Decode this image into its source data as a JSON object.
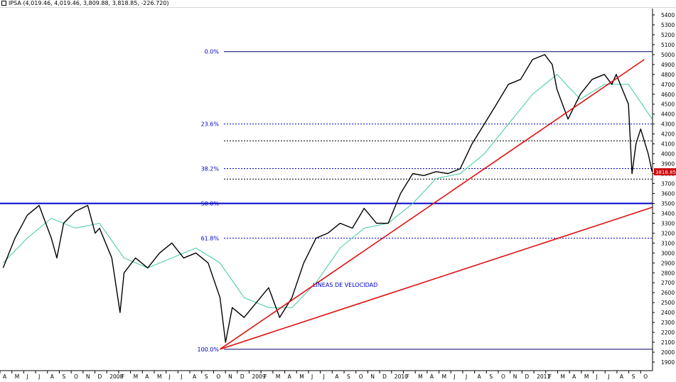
{
  "header": {
    "symbol": "IPSA",
    "ohlc": "(4,019.46, 4,019.46, 3,809.88, 3,818.85, -226.720)"
  },
  "chart_data": {
    "type": "line",
    "title": "IPSA",
    "subtitle": "(4,019.46, 4,019.46, 3,809.88, 3,818.85, -226.720)",
    "ylim": [
      1800,
      5500
    ],
    "yticks": [
      1900,
      2000,
      2100,
      2200,
      2300,
      2400,
      2500,
      2600,
      2700,
      2800,
      2900,
      3000,
      3100,
      3200,
      3300,
      3400,
      3500,
      3600,
      3700,
      3800,
      3900,
      4000,
      4100,
      4200,
      4300,
      4400,
      4500,
      4600,
      4700,
      4800,
      4900,
      5000,
      5100,
      5200,
      5300,
      5400
    ],
    "last_price_label": "3818.85",
    "last_price": 3818.85,
    "x_labels": [
      "A",
      "M",
      "J",
      "J",
      "A",
      "S",
      "O",
      "N",
      "D",
      "2008",
      "F",
      "M",
      "A",
      "M",
      "J",
      "J",
      "A",
      "S",
      "O",
      "N",
      "D",
      "2009",
      "F",
      "M",
      "A",
      "M",
      "J",
      "J",
      "A",
      "S",
      "O",
      "N",
      "D",
      "2010",
      "F",
      "M",
      "A",
      "M",
      "J",
      "J",
      "A",
      "S",
      "O",
      "N",
      "D",
      "2011",
      "F",
      "M",
      "A",
      "M",
      "J",
      "J",
      "A",
      "S",
      "O"
    ],
    "x_range": [
      "2007-04",
      "2011-10"
    ],
    "price_series": [
      {
        "date": "2007-04",
        "value": 2850
      },
      {
        "date": "2007-05",
        "value": 3150
      },
      {
        "date": "2007-06",
        "value": 3380
      },
      {
        "date": "2007-07",
        "value": 3480
      },
      {
        "date": "2007-08",
        "value": 3150
      },
      {
        "date": "2007-08-15",
        "value": 2950
      },
      {
        "date": "2007-09",
        "value": 3300
      },
      {
        "date": "2007-10",
        "value": 3420
      },
      {
        "date": "2007-11",
        "value": 3480
      },
      {
        "date": "2007-11-20",
        "value": 3200
      },
      {
        "date": "2007-12",
        "value": 3250
      },
      {
        "date": "2008-01",
        "value": 2950
      },
      {
        "date": "2008-01-22",
        "value": 2400
      },
      {
        "date": "2008-02",
        "value": 2800
      },
      {
        "date": "2008-03",
        "value": 2950
      },
      {
        "date": "2008-04",
        "value": 2850
      },
      {
        "date": "2008-05",
        "value": 3000
      },
      {
        "date": "2008-06",
        "value": 3100
      },
      {
        "date": "2008-07",
        "value": 2950
      },
      {
        "date": "2008-08",
        "value": 3000
      },
      {
        "date": "2008-09",
        "value": 2900
      },
      {
        "date": "2008-10",
        "value": 2550
      },
      {
        "date": "2008-10-15",
        "value": 2100
      },
      {
        "date": "2008-11",
        "value": 2450
      },
      {
        "date": "2008-12",
        "value": 2350
      },
      {
        "date": "2009-01",
        "value": 2500
      },
      {
        "date": "2009-02",
        "value": 2650
      },
      {
        "date": "2009-03",
        "value": 2350
      },
      {
        "date": "2009-04",
        "value": 2550
      },
      {
        "date": "2009-05",
        "value": 2900
      },
      {
        "date": "2009-06",
        "value": 3150
      },
      {
        "date": "2009-07",
        "value": 3200
      },
      {
        "date": "2009-08",
        "value": 3300
      },
      {
        "date": "2009-09",
        "value": 3250
      },
      {
        "date": "2009-10",
        "value": 3450
      },
      {
        "date": "2009-11",
        "value": 3300
      },
      {
        "date": "2009-12",
        "value": 3300
      },
      {
        "date": "2010-01",
        "value": 3600
      },
      {
        "date": "2010-02",
        "value": 3800
      },
      {
        "date": "2010-03",
        "value": 3780
      },
      {
        "date": "2010-04",
        "value": 3820
      },
      {
        "date": "2010-05",
        "value": 3800
      },
      {
        "date": "2010-06",
        "value": 3850
      },
      {
        "date": "2010-07",
        "value": 4100
      },
      {
        "date": "2010-08",
        "value": 4300
      },
      {
        "date": "2010-09",
        "value": 4500
      },
      {
        "date": "2010-10",
        "value": 4700
      },
      {
        "date": "2010-11",
        "value": 4750
      },
      {
        "date": "2010-12",
        "value": 4950
      },
      {
        "date": "2011-01",
        "value": 5000
      },
      {
        "date": "2011-01-20",
        "value": 4900
      },
      {
        "date": "2011-02",
        "value": 4650
      },
      {
        "date": "2011-03",
        "value": 4350
      },
      {
        "date": "2011-04",
        "value": 4600
      },
      {
        "date": "2011-05",
        "value": 4750
      },
      {
        "date": "2011-06",
        "value": 4800
      },
      {
        "date": "2011-06-20",
        "value": 4700
      },
      {
        "date": "2011-07",
        "value": 4800
      },
      {
        "date": "2011-08",
        "value": 4500
      },
      {
        "date": "2011-08-10",
        "value": 3800
      },
      {
        "date": "2011-08-20",
        "value": 4100
      },
      {
        "date": "2011-09",
        "value": 4250
      },
      {
        "date": "2011-09-20",
        "value": 4000
      },
      {
        "date": "2011-09-30",
        "value": 3818.85
      }
    ],
    "moving_average": [
      {
        "date": "2007-04",
        "value": 2900
      },
      {
        "date": "2007-06",
        "value": 3150
      },
      {
        "date": "2007-08",
        "value": 3350
      },
      {
        "date": "2007-10",
        "value": 3250
      },
      {
        "date": "2007-12",
        "value": 3300
      },
      {
        "date": "2008-02",
        "value": 2950
      },
      {
        "date": "2008-04",
        "value": 2850
      },
      {
        "date": "2008-06",
        "value": 2950
      },
      {
        "date": "2008-08",
        "value": 3050
      },
      {
        "date": "2008-10",
        "value": 2900
      },
      {
        "date": "2008-12",
        "value": 2550
      },
      {
        "date": "2009-02",
        "value": 2450
      },
      {
        "date": "2009-04",
        "value": 2450
      },
      {
        "date": "2009-06",
        "value": 2700
      },
      {
        "date": "2009-08",
        "value": 3050
      },
      {
        "date": "2009-10",
        "value": 3250
      },
      {
        "date": "2009-12",
        "value": 3300
      },
      {
        "date": "2010-02",
        "value": 3500
      },
      {
        "date": "2010-04",
        "value": 3750
      },
      {
        "date": "2010-06",
        "value": 3800
      },
      {
        "date": "2010-08",
        "value": 4000
      },
      {
        "date": "2010-10",
        "value": 4300
      },
      {
        "date": "2010-12",
        "value": 4600
      },
      {
        "date": "2011-02",
        "value": 4800
      },
      {
        "date": "2011-04",
        "value": 4550
      },
      {
        "date": "2011-06",
        "value": 4700
      },
      {
        "date": "2011-08",
        "value": 4700
      },
      {
        "date": "2011-09-30",
        "value": 4350
      }
    ],
    "fibonacci": [
      {
        "label": "0.0%",
        "value": 5030
      },
      {
        "label": "23.6%",
        "value": 4300
      },
      {
        "label": "38.2%",
        "value": 3850
      },
      {
        "label": "50.0%",
        "value": 3500
      },
      {
        "label": "61.8%",
        "value": 3150
      },
      {
        "label": "100.0%",
        "value": 2030
      }
    ],
    "fib_extra_levels": [
      4130,
      3745
    ],
    "horizontal_line": 3500,
    "speed_lines": {
      "label": "LÍNEAS DE VELOCIDAD",
      "origin": {
        "date": "2008-10",
        "value": 2030
      },
      "ends": [
        {
          "date": "2011-09-10",
          "value": 4950
        },
        {
          "date": "2011-09-30",
          "value": 3460
        }
      ]
    },
    "colors": {
      "price": "#000000",
      "moving_average": "#40c8a8",
      "fibonacci": "#0000cc",
      "horizontal_line": "#0000cc",
      "speed_lines": "#e01010",
      "last_price_box": "#cc0000"
    },
    "grid": false,
    "legend": "none"
  }
}
